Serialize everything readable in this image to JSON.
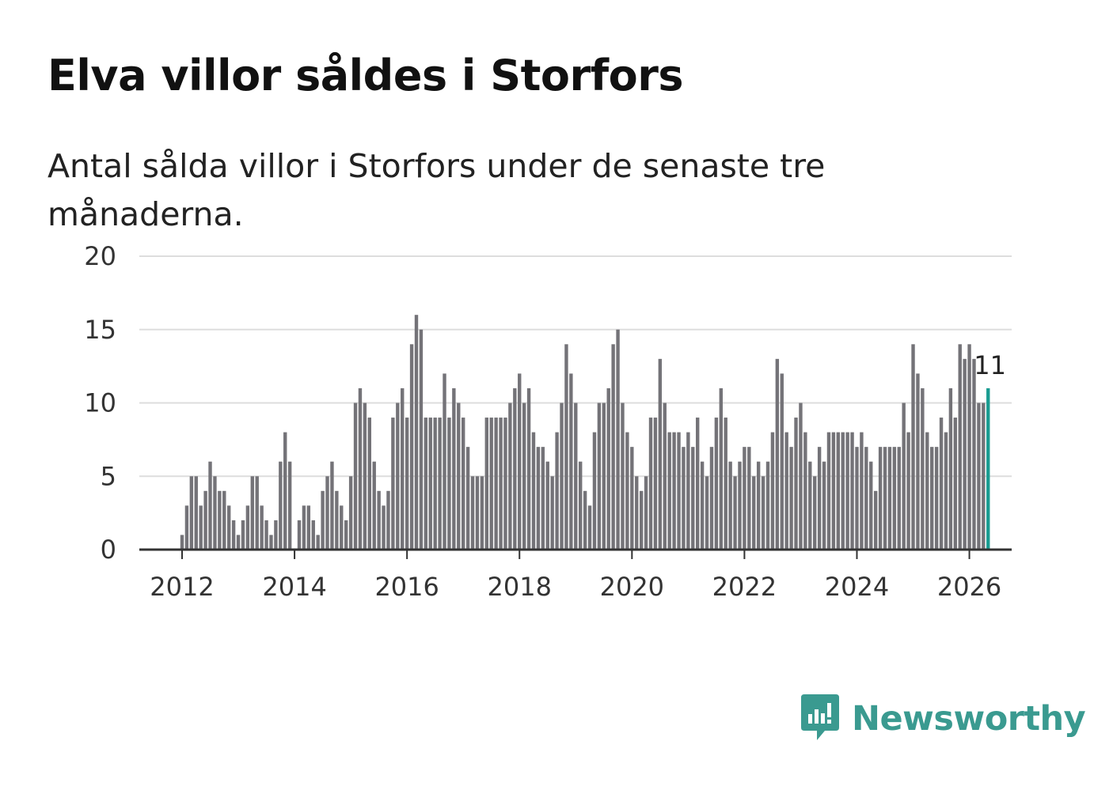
{
  "title": "Elva villor såldes i Storfors",
  "subtitle": "Antal sålda villor i Storfors under de senaste tre månaderna.",
  "brand": "Newsworthy",
  "colors": {
    "bar": "#747378",
    "highlight": "#1a9c91",
    "grid": "#dddddd",
    "axis": "#333333",
    "brand": "#3a9a90"
  },
  "chart_data": {
    "type": "bar",
    "title": "Elva villor såldes i Storfors",
    "xlabel": "",
    "ylabel": "",
    "ylim": [
      0,
      20
    ],
    "y_ticks": [
      0,
      5,
      10,
      15,
      20
    ],
    "x_ticks": [
      "2012",
      "2014",
      "2016",
      "2018",
      "2020",
      "2022",
      "2024",
      "2026"
    ],
    "start": "2012-01",
    "end": "2026-01",
    "highlight_label": "11",
    "values": [
      1,
      3,
      5,
      5,
      3,
      4,
      6,
      5,
      4,
      4,
      3,
      2,
      1,
      2,
      3,
      5,
      5,
      3,
      2,
      1,
      2,
      6,
      8,
      6,
      0,
      2,
      3,
      3,
      2,
      1,
      4,
      5,
      6,
      4,
      3,
      2,
      5,
      10,
      11,
      10,
      9,
      6,
      4,
      3,
      4,
      9,
      10,
      11,
      9,
      14,
      16,
      15,
      9,
      9,
      9,
      9,
      12,
      9,
      11,
      10,
      9,
      7,
      5,
      5,
      5,
      9,
      9,
      9,
      9,
      9,
      10,
      11,
      12,
      10,
      11,
      8,
      7,
      7,
      6,
      5,
      8,
      10,
      14,
      12,
      10,
      6,
      4,
      3,
      8,
      10,
      10,
      11,
      14,
      15,
      10,
      8,
      7,
      5,
      4,
      5,
      9,
      9,
      13,
      10,
      8,
      8,
      8,
      7,
      8,
      7,
      9,
      6,
      5,
      7,
      9,
      11,
      9,
      6,
      5,
      6,
      7,
      7,
      5,
      6,
      5,
      6,
      8,
      13,
      12,
      8,
      7,
      9,
      10,
      8,
      6,
      5,
      7,
      6,
      8,
      8,
      8,
      8,
      8,
      8,
      7,
      8,
      7,
      6,
      4,
      7,
      7,
      7,
      7,
      7,
      10,
      8,
      14,
      12,
      11,
      8,
      7,
      7,
      9,
      8,
      11,
      9,
      14,
      13,
      14,
      13,
      10,
      10,
      11
    ]
  }
}
